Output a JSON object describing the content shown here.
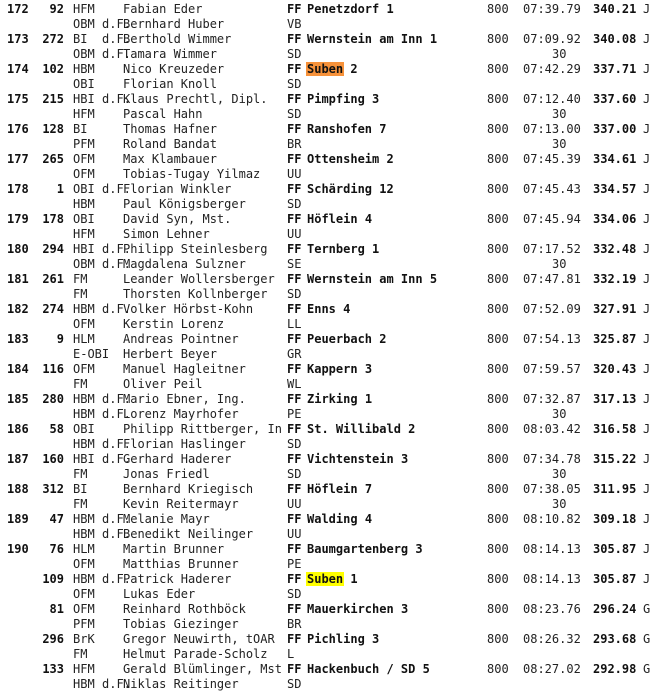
{
  "highlight_colors": {
    "orange": "#f7923a",
    "yellow": "#ffff00"
  },
  "entries": [
    {
      "rank": "172",
      "num": "92",
      "grade": "HFM",
      "df": "",
      "name": "Fabian Eder",
      "unit": "FF",
      "team": "Penetzdorf",
      "team_no": "1",
      "hl": "",
      "dist": "800",
      "time": "07:39.79",
      "score": "340.21",
      "cls": "J",
      "grade2": "OBM",
      "df2": "d.F.",
      "name2": "Bernhard Huber",
      "unit2": "VB",
      "extra": ""
    },
    {
      "rank": "173",
      "num": "272",
      "grade": "BI",
      "df": "d.F.",
      "name": "Berthold Wimmer",
      "unit": "FF",
      "team": "Wernstein am Inn",
      "team_no": "1",
      "hl": "",
      "dist": "800",
      "time": "07:09.92",
      "score": "340.08",
      "cls": "J",
      "grade2": "OBM",
      "df2": "d.F.",
      "name2": "Tamara Wimmer",
      "unit2": "SD",
      "extra": "30"
    },
    {
      "rank": "174",
      "num": "102",
      "grade": "HBM",
      "df": "",
      "name": "Nico Kreuzeder",
      "unit": "FF",
      "team": "Suben",
      "team_no": "2",
      "hl": "orange",
      "dist": "800",
      "time": "07:42.29",
      "score": "337.71",
      "cls": "J",
      "grade2": "OBI",
      "df2": "",
      "name2": "Florian Knoll",
      "unit2": "SD",
      "extra": ""
    },
    {
      "rank": "175",
      "num": "215",
      "grade": "HBI",
      "df": "d.F.",
      "name": "Klaus Prechtl, Dipl.",
      "unit": "FF",
      "team": "Pimpfing",
      "team_no": "3",
      "hl": "",
      "dist": "800",
      "time": "07:12.40",
      "score": "337.60",
      "cls": "J",
      "grade2": "HFM",
      "df2": "",
      "name2": "Pascal Hahn",
      "unit2": "SD",
      "extra": "30"
    },
    {
      "rank": "176",
      "num": "128",
      "grade": "BI",
      "df": "",
      "name": "Thomas Hafner",
      "unit": "FF",
      "team": "Ranshofen",
      "team_no": "7",
      "hl": "",
      "dist": "800",
      "time": "07:13.00",
      "score": "337.00",
      "cls": "J",
      "grade2": "PFM",
      "df2": "",
      "name2": "Roland Bandat",
      "unit2": "BR",
      "extra": "30"
    },
    {
      "rank": "177",
      "num": "265",
      "grade": "OFM",
      "df": "",
      "name": "Max Klambauer",
      "unit": "FF",
      "team": "Ottensheim",
      "team_no": "2",
      "hl": "",
      "dist": "800",
      "time": "07:45.39",
      "score": "334.61",
      "cls": "J",
      "grade2": "OFM",
      "df2": "",
      "name2": "Tobias-Tugay Yilmaz",
      "unit2": "UU",
      "extra": ""
    },
    {
      "rank": "178",
      "num": "1",
      "grade": "OBI",
      "df": "d.F.",
      "name": "Florian Winkler",
      "unit": "FF",
      "team": "Schärding",
      "team_no": "12",
      "hl": "",
      "dist": "800",
      "time": "07:45.43",
      "score": "334.57",
      "cls": "J",
      "grade2": "HBM",
      "df2": "",
      "name2": "Paul Königsberger",
      "unit2": "SD",
      "extra": ""
    },
    {
      "rank": "179",
      "num": "178",
      "grade": "OBI",
      "df": "",
      "name": "David Syn, Mst.",
      "unit": "FF",
      "team": "Höflein",
      "team_no": "4",
      "hl": "",
      "dist": "800",
      "time": "07:45.94",
      "score": "334.06",
      "cls": "J",
      "grade2": "HFM",
      "df2": "",
      "name2": "Simon Lehner",
      "unit2": "UU",
      "extra": ""
    },
    {
      "rank": "180",
      "num": "294",
      "grade": "HBI",
      "df": "d.F.",
      "name": "Philipp Steinlesberg",
      "unit": "FF",
      "team": "Ternberg",
      "team_no": "1",
      "hl": "",
      "dist": "800",
      "time": "07:17.52",
      "score": "332.48",
      "cls": "J",
      "grade2": "OBM",
      "df2": "d.F.",
      "name2": "Magdalena Sulzner",
      "unit2": "SE",
      "extra": "30"
    },
    {
      "rank": "181",
      "num": "261",
      "grade": "FM",
      "df": "",
      "name": "Leander Wollersberger",
      "unit": "FF",
      "team": "Wernstein am Inn",
      "team_no": "5",
      "hl": "",
      "dist": "800",
      "time": "07:47.81",
      "score": "332.19",
      "cls": "J",
      "grade2": "FM",
      "df2": "",
      "name2": "Thorsten Kollnberger",
      "unit2": "SD",
      "extra": ""
    },
    {
      "rank": "182",
      "num": "274",
      "grade": "HBM",
      "df": "d.F.",
      "name": "Volker Hörbst-Kohn",
      "unit": "FF",
      "team": "Enns",
      "team_no": "4",
      "hl": "",
      "dist": "800",
      "time": "07:52.09",
      "score": "327.91",
      "cls": "J",
      "grade2": "OFM",
      "df2": "",
      "name2": "Kerstin Lorenz",
      "unit2": "LL",
      "extra": ""
    },
    {
      "rank": "183",
      "num": "9",
      "grade": "HLM",
      "df": "",
      "name": "Andreas Pointner",
      "unit": "FF",
      "team": "Peuerbach",
      "team_no": "2",
      "hl": "",
      "dist": "800",
      "time": "07:54.13",
      "score": "325.87",
      "cls": "J",
      "grade2": "E-OBI",
      "df2": "",
      "name2": "Herbert Beyer",
      "unit2": "GR",
      "extra": ""
    },
    {
      "rank": "184",
      "num": "116",
      "grade": "OFM",
      "df": "",
      "name": "Manuel Hagleitner",
      "unit": "FF",
      "team": "Kappern",
      "team_no": "3",
      "hl": "",
      "dist": "800",
      "time": "07:59.57",
      "score": "320.43",
      "cls": "J",
      "grade2": "FM",
      "df2": "",
      "name2": "Oliver Peil",
      "unit2": "WL",
      "extra": ""
    },
    {
      "rank": "185",
      "num": "280",
      "grade": "HBM",
      "df": "d.F.",
      "name": "Mario Ebner, Ing.",
      "unit": "FF",
      "team": "Zirking",
      "team_no": "1",
      "hl": "",
      "dist": "800",
      "time": "07:32.87",
      "score": "317.13",
      "cls": "J",
      "grade2": "HBM",
      "df2": "d.F.",
      "name2": "Lorenz Mayrhofer",
      "unit2": "PE",
      "extra": "30"
    },
    {
      "rank": "186",
      "num": "58",
      "grade": "OBI",
      "df": "",
      "name": "Philipp Rittberger, In",
      "unit": "FF",
      "team": "St. Willibald",
      "team_no": "2",
      "hl": "",
      "dist": "800",
      "time": "08:03.42",
      "score": "316.58",
      "cls": "J",
      "grade2": "HBM",
      "df2": "d.F.",
      "name2": "Florian Haslinger",
      "unit2": "SD",
      "extra": ""
    },
    {
      "rank": "187",
      "num": "160",
      "grade": "HBI",
      "df": "d.F.",
      "name": "Gerhard Haderer",
      "unit": "FF",
      "team": "Vichtenstein",
      "team_no": "3",
      "hl": "",
      "dist": "800",
      "time": "07:34.78",
      "score": "315.22",
      "cls": "J",
      "grade2": "FM",
      "df2": "",
      "name2": "Jonas Friedl",
      "unit2": "SD",
      "extra": "30"
    },
    {
      "rank": "188",
      "num": "312",
      "grade": "BI",
      "df": "",
      "name": "Bernhard Kriegisch",
      "unit": "FF",
      "team": "Höflein",
      "team_no": "7",
      "hl": "",
      "dist": "800",
      "time": "07:38.05",
      "score": "311.95",
      "cls": "J",
      "grade2": "FM",
      "df2": "",
      "name2": "Kevin Reitermayr",
      "unit2": "UU",
      "extra": "30"
    },
    {
      "rank": "189",
      "num": "47",
      "grade": "HBM",
      "df": "d.F.",
      "name": "Melanie Mayr",
      "unit": "FF",
      "team": "Walding",
      "team_no": "4",
      "hl": "",
      "dist": "800",
      "time": "08:10.82",
      "score": "309.18",
      "cls": "J",
      "grade2": "HBM",
      "df2": "d.F.",
      "name2": "Benedikt Neilinger",
      "unit2": "UU",
      "extra": ""
    },
    {
      "rank": "190",
      "num": "76",
      "grade": "HLM",
      "df": "",
      "name": "Martin Brunner",
      "unit": "FF",
      "team": "Baumgartenberg",
      "team_no": "3",
      "hl": "",
      "dist": "800",
      "time": "08:14.13",
      "score": "305.87",
      "cls": "J",
      "grade2": "OFM",
      "df2": "",
      "name2": "Matthias Brunner",
      "unit2": "PE",
      "extra": ""
    },
    {
      "rank": "",
      "num": "109",
      "grade": "HBM",
      "df": "d.F.",
      "name": "Patrick Haderer",
      "unit": "FF",
      "team": "Suben",
      "team_no": "1",
      "hl": "yellow",
      "dist": "800",
      "time": "08:14.13",
      "score": "305.87",
      "cls": "J",
      "grade2": "OFM",
      "df2": "",
      "name2": "Lukas Eder",
      "unit2": "SD",
      "extra": ""
    },
    {
      "rank": "",
      "num": "81",
      "grade": "OFM",
      "df": "",
      "name": "Reinhard Rothböck",
      "unit": "FF",
      "team": "Mauerkirchen",
      "team_no": "3",
      "hl": "",
      "dist": "800",
      "time": "08:23.76",
      "score": "296.24",
      "cls": "G",
      "grade2": "PFM",
      "df2": "",
      "name2": "Tobias Giezinger",
      "unit2": "BR",
      "extra": ""
    },
    {
      "rank": "",
      "num": "296",
      "grade": "BrK",
      "df": "",
      "name": "Gregor Neuwirth, tOAR",
      "unit": "FF",
      "team": "Pichling",
      "team_no": "3",
      "hl": "",
      "dist": "800",
      "time": "08:26.32",
      "score": "293.68",
      "cls": "G",
      "grade2": "FM",
      "df2": "",
      "name2": "Helmut Parade-Scholz",
      "unit2": "L",
      "extra": ""
    },
    {
      "rank": "",
      "num": "133",
      "grade": "HFM",
      "df": "",
      "name": "Gerald Blümlinger, Mst",
      "unit": "FF",
      "team": "Hackenbuch / SD",
      "team_no": "5",
      "hl": "",
      "dist": "800",
      "time": "08:27.02",
      "score": "292.98",
      "cls": "G",
      "grade2": "HBM",
      "df2": "d.F.",
      "name2": "Niklas Reitinger",
      "unit2": "SD",
      "extra": ""
    }
  ]
}
